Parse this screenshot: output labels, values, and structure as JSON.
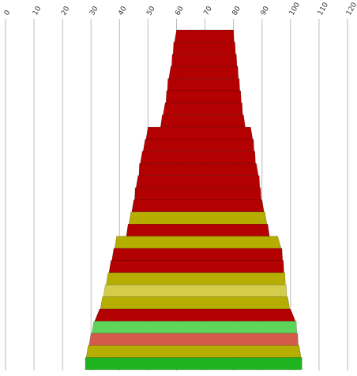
{
  "chart_data": {
    "type": "funnel",
    "title": "",
    "xlabel": "",
    "ylabel": "",
    "xlim": [
      0,
      120
    ],
    "x_ticks": [
      "0",
      "10",
      "20",
      "30",
      "40",
      "50",
      "60",
      "70",
      "80",
      "90",
      "100",
      "110",
      "120"
    ],
    "grid": "vertical",
    "legend": "none",
    "colors": {
      "red": "#b30000",
      "olive": "#b5ad00",
      "khaki": "#d4cd4c",
      "light_green": "#5fd45a",
      "salmon": "#d45a4c",
      "green": "#1fb31f"
    },
    "bands": [
      {
        "left": 60,
        "right": 80,
        "color": "red"
      },
      {
        "left": 59,
        "right": 80.5,
        "color": "red"
      },
      {
        "left": 58.5,
        "right": 81,
        "color": "red"
      },
      {
        "left": 58,
        "right": 81.5,
        "color": "red"
      },
      {
        "left": 57,
        "right": 82,
        "color": "red"
      },
      {
        "left": 56.5,
        "right": 82.5,
        "color": "red"
      },
      {
        "left": 56,
        "right": 83,
        "color": "red"
      },
      {
        "left": 55,
        "right": 83.5,
        "color": "red"
      },
      {
        "left": 50,
        "right": 86,
        "color": "red"
      },
      {
        "left": 49,
        "right": 87,
        "color": "red"
      },
      {
        "left": 48,
        "right": 87.5,
        "color": "red"
      },
      {
        "left": 47,
        "right": 88,
        "color": "red"
      },
      {
        "left": 46.5,
        "right": 89,
        "color": "red"
      },
      {
        "left": 45.5,
        "right": 89.5,
        "color": "red"
      },
      {
        "left": 45,
        "right": 90,
        "color": "red"
      },
      {
        "left": 44,
        "right": 91,
        "color": "olive"
      },
      {
        "left": 43,
        "right": 92,
        "color": "red"
      },
      {
        "left": 39,
        "right": 95.5,
        "color": "olive"
      },
      {
        "left": 38,
        "right": 97,
        "color": "red"
      },
      {
        "left": 37,
        "right": 97.5,
        "color": "red"
      },
      {
        "left": 36,
        "right": 98,
        "color": "olive"
      },
      {
        "left": 35,
        "right": 98.5,
        "color": "khaki"
      },
      {
        "left": 34,
        "right": 99,
        "color": "olive"
      },
      {
        "left": 33,
        "right": 100,
        "color": "red"
      },
      {
        "left": 31,
        "right": 102,
        "color": "light_green"
      },
      {
        "left": 30,
        "right": 102.5,
        "color": "salmon"
      },
      {
        "left": 29,
        "right": 103,
        "color": "olive"
      },
      {
        "left": 28,
        "right": 104,
        "color": "green"
      }
    ]
  }
}
